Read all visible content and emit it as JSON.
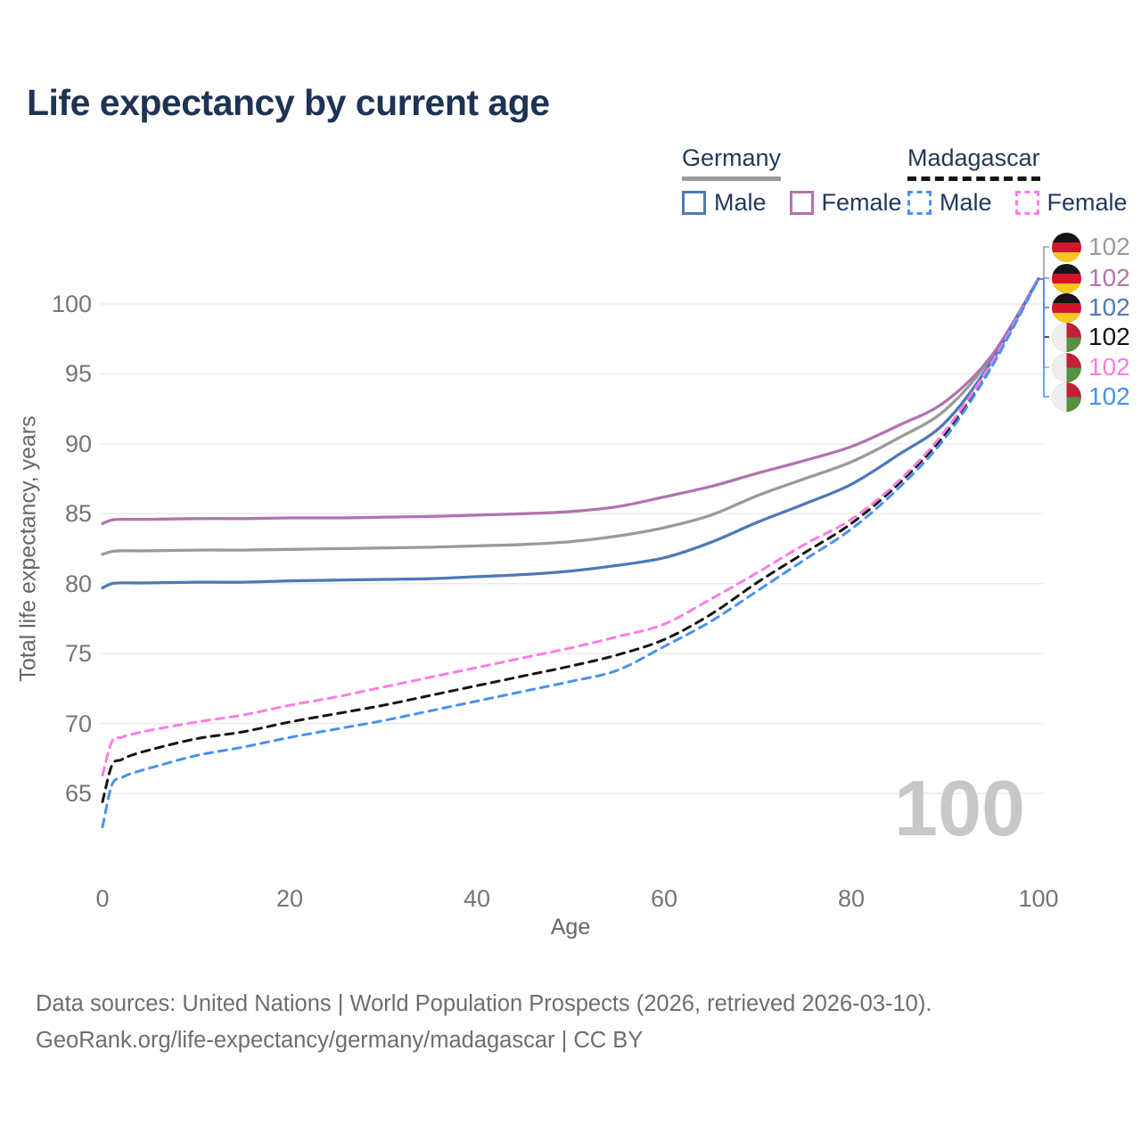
{
  "title": "Life expectancy by current age",
  "legend": {
    "groups": [
      {
        "country": "Germany",
        "line_style": "solid",
        "underline_color": "#9a9a9a",
        "items": [
          {
            "label": "Male",
            "color": "#4e79b8"
          },
          {
            "label": "Female",
            "color": "#b173af"
          }
        ]
      },
      {
        "country": "Madagascar",
        "line_style": "dashed",
        "underline_color": "#141414",
        "items": [
          {
            "label": "Male",
            "color": "#4791f2"
          },
          {
            "label": "Female",
            "color": "#fd7ce4"
          }
        ]
      }
    ]
  },
  "watermark": "100",
  "footer": {
    "line1": "Data sources: United Nations | World Population Prospects (2026, retrieved 2026-03-10).",
    "line2": "GeoRank.org/life-expectancy/germany/madagascar | CC BY"
  },
  "chart_data": {
    "type": "line",
    "title": "Life expectancy by current age",
    "xlabel": "Age",
    "ylabel": "Total life expectancy, years",
    "xticks": [
      0,
      20,
      40,
      60,
      80,
      100
    ],
    "yticks": [
      65,
      70,
      75,
      80,
      85,
      90,
      95,
      100
    ],
    "xlim": [
      0,
      100
    ],
    "ylim": [
      62,
      103
    ],
    "grid": "horizontal-only",
    "legend_position": "top-right",
    "ages": [
      0,
      1,
      2,
      3,
      5,
      10,
      15,
      20,
      25,
      30,
      35,
      40,
      45,
      50,
      55,
      60,
      65,
      70,
      75,
      80,
      85,
      90,
      95,
      100
    ],
    "series": [
      {
        "name": "Germany Both sexes",
        "color": "#9a9a9a",
        "dash": false,
        "end_value": "102",
        "values": [
          82.1,
          82.3,
          82.35,
          82.35,
          82.35,
          82.4,
          82.4,
          82.45,
          82.5,
          82.55,
          82.6,
          82.7,
          82.8,
          83.0,
          83.4,
          84.0,
          84.9,
          86.3,
          87.5,
          88.7,
          90.4,
          92.4,
          96.2,
          101.8
        ]
      },
      {
        "name": "Germany Female",
        "color": "#b173af",
        "dash": false,
        "end_value": "102",
        "values": [
          84.3,
          84.55,
          84.6,
          84.6,
          84.6,
          84.65,
          84.65,
          84.7,
          84.7,
          84.75,
          84.8,
          84.9,
          85.0,
          85.15,
          85.5,
          86.2,
          86.95,
          87.9,
          88.8,
          89.8,
          91.3,
          93.0,
          96.3,
          101.8
        ]
      },
      {
        "name": "Germany Male",
        "color": "#4e79b8",
        "dash": false,
        "end_value": "102",
        "values": [
          79.7,
          80.0,
          80.05,
          80.05,
          80.05,
          80.1,
          80.1,
          80.2,
          80.25,
          80.3,
          80.35,
          80.5,
          80.65,
          80.9,
          81.3,
          81.85,
          82.95,
          84.4,
          85.7,
          87.1,
          89.2,
          91.5,
          95.9,
          101.8
        ]
      },
      {
        "name": "Madagascar Both sexes",
        "color": "#141414",
        "dash": true,
        "end_value": "102",
        "values": [
          64.4,
          67.0,
          67.4,
          67.7,
          68.1,
          68.9,
          69.4,
          70.1,
          70.7,
          71.3,
          72.0,
          72.7,
          73.4,
          74.1,
          74.9,
          76.0,
          77.8,
          80.1,
          82.2,
          84.3,
          87.1,
          90.7,
          95.7,
          101.8
        ]
      },
      {
        "name": "Madagascar Female",
        "color": "#fd7ce4",
        "dash": true,
        "end_value": "102",
        "values": [
          66.3,
          68.7,
          69.0,
          69.2,
          69.5,
          70.1,
          70.6,
          71.3,
          71.9,
          72.6,
          73.3,
          74.0,
          74.7,
          75.4,
          76.2,
          77.1,
          78.9,
          80.8,
          82.8,
          84.6,
          87.3,
          90.9,
          95.8,
          101.8
        ]
      },
      {
        "name": "Madagascar Male",
        "color": "#4791f2",
        "dash": true,
        "end_value": "102",
        "values": [
          62.6,
          65.6,
          66.1,
          66.4,
          66.8,
          67.7,
          68.3,
          69.0,
          69.6,
          70.2,
          70.9,
          71.6,
          72.3,
          73.0,
          73.8,
          75.5,
          77.3,
          79.5,
          81.7,
          83.9,
          86.8,
          90.4,
          95.5,
          101.8
        ]
      }
    ],
    "end_labels": [
      {
        "flag": "germany",
        "value": "102",
        "color": "#9a9a9a"
      },
      {
        "flag": "germany",
        "value": "102",
        "color": "#b173af"
      },
      {
        "flag": "germany",
        "value": "102",
        "color": "#4e79b8"
      },
      {
        "flag": "madagascar",
        "value": "102",
        "color": "#141414"
      },
      {
        "flag": "madagascar",
        "value": "102",
        "color": "#fd7ce4"
      },
      {
        "flag": "madagascar",
        "value": "102",
        "color": "#4791f2"
      }
    ]
  }
}
